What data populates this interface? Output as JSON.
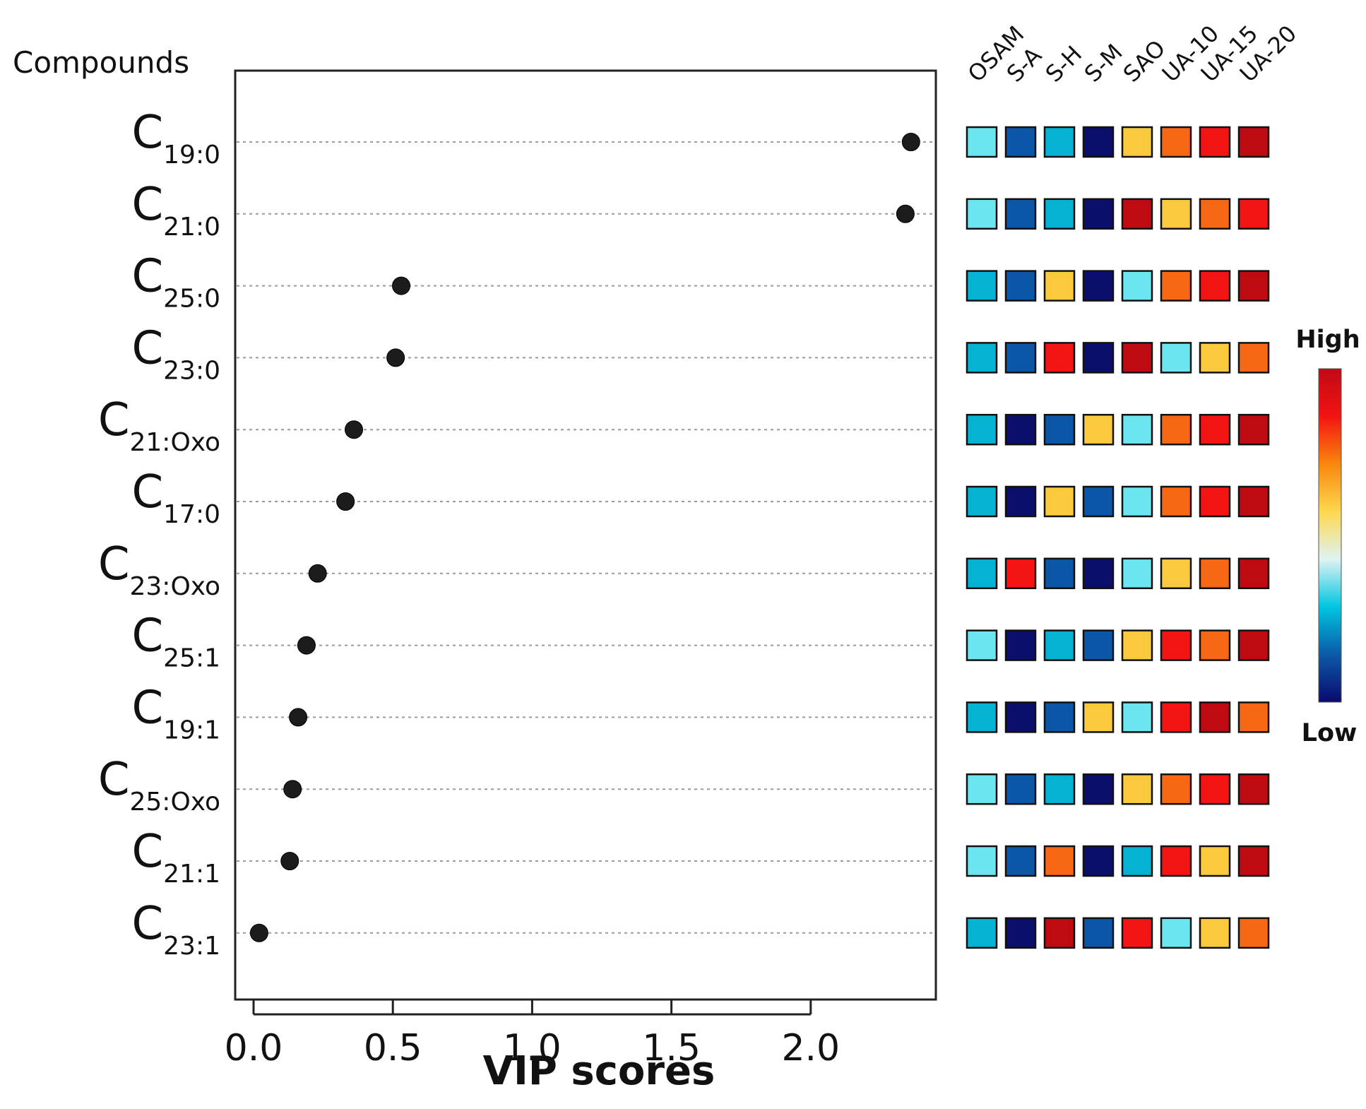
{
  "chart_data": {
    "type": "scatter",
    "title": "",
    "compounds_header": "Compounds",
    "xlabel": "VIP scores",
    "ylabel": "",
    "xlim": [
      -0.05,
      2.43
    ],
    "xticks": [
      "0.0",
      "0.5",
      "1.0",
      "1.5",
      "2.0"
    ],
    "xtick_values": [
      0.0,
      0.5,
      1.0,
      1.5,
      2.0
    ],
    "grid": "horizontal dotted",
    "compounds": [
      {
        "base": "C",
        "sub": "19:0",
        "vip": 2.36
      },
      {
        "base": "C",
        "sub": "21:0",
        "vip": 2.34
      },
      {
        "base": "C",
        "sub": "25:0",
        "vip": 0.53
      },
      {
        "base": "C",
        "sub": "23:0",
        "vip": 0.51
      },
      {
        "base": "C",
        "sub": "21:Oxo",
        "vip": 0.36
      },
      {
        "base": "C",
        "sub": "17:0",
        "vip": 0.33
      },
      {
        "base": "C",
        "sub": "23:Oxo",
        "vip": 0.23
      },
      {
        "base": "C",
        "sub": "25:1",
        "vip": 0.19
      },
      {
        "base": "C",
        "sub": "19:1",
        "vip": 0.16
      },
      {
        "base": "C",
        "sub": "25:Oxo",
        "vip": 0.14
      },
      {
        "base": "C",
        "sub": "21:1",
        "vip": 0.13
      },
      {
        "base": "C",
        "sub": "23:1",
        "vip": 0.02
      }
    ],
    "heatmap": {
      "columns": [
        "OSAM",
        "S-A",
        "S-H",
        "S-M",
        "SAO",
        "UA-10",
        "UA-15",
        "UA-20"
      ],
      "levels": [
        [
          3,
          1,
          2,
          0,
          4,
          5,
          6,
          7
        ],
        [
          3,
          1,
          2,
          0,
          7,
          4,
          5,
          6
        ],
        [
          2,
          1,
          4,
          0,
          3,
          5,
          6,
          7
        ],
        [
          2,
          1,
          6,
          0,
          7,
          3,
          4,
          5
        ],
        [
          2,
          0,
          1,
          4,
          3,
          5,
          6,
          7
        ],
        [
          2,
          0,
          4,
          1,
          3,
          5,
          6,
          7
        ],
        [
          2,
          6,
          1,
          0,
          3,
          4,
          5,
          7
        ],
        [
          3,
          0,
          2,
          1,
          4,
          6,
          5,
          7
        ],
        [
          2,
          0,
          1,
          4,
          3,
          6,
          7,
          5
        ],
        [
          3,
          1,
          2,
          0,
          4,
          5,
          6,
          7
        ],
        [
          3,
          1,
          5,
          0,
          2,
          6,
          4,
          7
        ],
        [
          2,
          0,
          7,
          1,
          6,
          3,
          4,
          5
        ]
      ],
      "level_colors": [
        "#0a0f6b",
        "#0b56a6",
        "#05b2d3",
        "#6be6f0",
        "#fbc93d",
        "#f86714",
        "#f41414",
        "#bf0a12"
      ],
      "legend": {
        "high_label": "High",
        "low_label": "Low",
        "gradient_colors": [
          "#0a0a6e",
          "#0c5aa8",
          "#00c6e0",
          "#dff3f3",
          "#fdd850",
          "#f8870c",
          "#f41313",
          "#c00a14"
        ]
      }
    }
  }
}
